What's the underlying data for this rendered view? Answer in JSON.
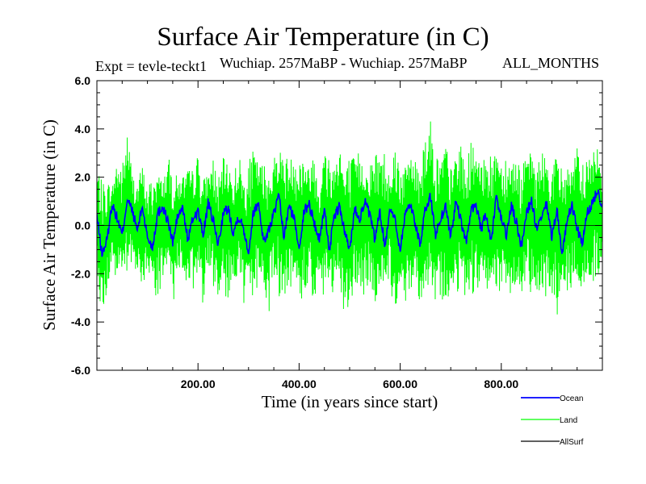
{
  "header": {
    "title": "Surface Air Temperature (in C)",
    "expt": "Expt = tevle-teckt1",
    "period": "Wuchiap. 257MaBP - Wuchiap. 257MaBP",
    "months": "ALL_MONTHS"
  },
  "chart_data": {
    "type": "line",
    "title": "Surface Air Temperature (in C)",
    "xlabel": "Time (in years since start)",
    "ylabel": "Surface Air Temperature (in C)",
    "xlim": [
      0,
      1000
    ],
    "ylim": [
      -6.0,
      6.0
    ],
    "x_ticks": [
      200,
      400,
      600,
      800
    ],
    "x_tick_labels": [
      "200.00",
      "400.00",
      "600.00",
      "800.00"
    ],
    "y_ticks": [
      6,
      4,
      2,
      0,
      -2,
      -4,
      -6
    ],
    "y_tick_labels": [
      "6.0",
      "4.0",
      "2.0",
      "0.0",
      "-2.0",
      "-4.0",
      "-6.0"
    ],
    "legend_position": "bottom-right, outside plot",
    "series": [
      {
        "name": "Land",
        "color": "#00ff00",
        "x": [
          0,
          10,
          20,
          30,
          40,
          50,
          60,
          70,
          80,
          90,
          100,
          110,
          120,
          130,
          140,
          150,
          160,
          170,
          180,
          190,
          200,
          210,
          220,
          230,
          240,
          250,
          260,
          270,
          280,
          290,
          300,
          310,
          320,
          330,
          340,
          350,
          360,
          370,
          380,
          390,
          400,
          410,
          420,
          430,
          440,
          450,
          460,
          470,
          480,
          490,
          500,
          510,
          520,
          530,
          540,
          550,
          560,
          570,
          580,
          590,
          600,
          610,
          620,
          630,
          640,
          650,
          660,
          670,
          680,
          690,
          700,
          710,
          720,
          730,
          740,
          750,
          760,
          770,
          780,
          790,
          800,
          810,
          820,
          830,
          840,
          850,
          860,
          870,
          880,
          890,
          900,
          910,
          920,
          930,
          940,
          950,
          960,
          970,
          980,
          990,
          1000
        ],
        "upper": [
          2.6,
          1.8,
          2.0,
          1.5,
          3.0,
          2.5,
          4.1,
          2.2,
          1.9,
          2.5,
          1.5,
          2.3,
          2.2,
          1.8,
          2.8,
          2.6,
          1.9,
          2.1,
          2.4,
          2.3,
          3.0,
          2.0,
          2.1,
          2.9,
          1.9,
          2.8,
          2.5,
          2.2,
          3.1,
          2.0,
          2.6,
          3.2,
          2.5,
          2.7,
          2.4,
          2.9,
          3.1,
          3.4,
          2.5,
          3.3,
          3.2,
          2.9,
          2.3,
          3.4,
          2.1,
          3.1,
          3.3,
          2.6,
          3.7,
          2.2,
          3.0,
          2.8,
          3.2,
          2.1,
          2.5,
          3.4,
          2.9,
          3.3,
          2.2,
          3.5,
          3.1,
          2.4,
          3.2,
          2.7,
          3.3,
          3.9,
          4.4,
          3.1,
          2.8,
          3.5,
          2.4,
          3.0,
          3.3,
          2.7,
          3.5,
          3.1,
          2.4,
          3.8,
          2.7,
          3.4,
          2.8,
          3.2,
          2.6,
          3.0,
          2.5,
          2.8,
          3.1,
          2.4,
          3.2,
          2.7,
          2.5,
          3.0,
          2.4,
          2.8,
          2.2,
          3.3,
          2.6,
          3.0,
          2.9,
          3.4,
          2.0
        ],
        "lower": [
          -1.6,
          -4.0,
          -2.8,
          -1.9,
          -2.6,
          -1.8,
          -2.4,
          -2.0,
          -1.7,
          -2.7,
          -2.1,
          -1.9,
          -3.5,
          -2.6,
          -2.2,
          -3.4,
          -1.9,
          -2.8,
          -2.0,
          -3.0,
          -2.2,
          -3.3,
          -1.9,
          -2.6,
          -2.9,
          -2.1,
          -3.8,
          -2.4,
          -2.0,
          -3.6,
          -2.5,
          -3.2,
          -2.3,
          -2.6,
          -3.8,
          -2.0,
          -3.1,
          -2.7,
          -3.3,
          -2.2,
          -2.9,
          -3.4,
          -2.1,
          -3.6,
          -2.4,
          -3.1,
          -2.2,
          -3.7,
          -2.8,
          -3.9,
          -3.5,
          -2.6,
          -2.9,
          -3.2,
          -2.4,
          -3.3,
          -2.6,
          -2.3,
          -2.8,
          -3.6,
          -2.2,
          -3.4,
          -2.7,
          -2.1,
          -3.4,
          -2.5,
          -3.0,
          -4.2,
          -2.8,
          -3.6,
          -2.6,
          -3.0,
          -2.3,
          -3.2,
          -2.5,
          -3.5,
          -2.4,
          -3.1,
          -2.2,
          -3.4,
          -2.5,
          -2.8,
          -3.3,
          -2.2,
          -3.0,
          -2.6,
          -2.8,
          -3.2,
          -2.4,
          -3.2,
          -2.8,
          -3.9,
          -2.4,
          -3.0,
          -2.6,
          -2.1,
          -2.9,
          -2.2,
          -2.7,
          -2.3,
          -1.5
        ]
      },
      {
        "name": "Ocean",
        "color": "#0000ff",
        "x": [
          0,
          10,
          20,
          30,
          40,
          50,
          60,
          70,
          80,
          90,
          100,
          110,
          120,
          130,
          140,
          150,
          160,
          170,
          180,
          190,
          200,
          210,
          220,
          230,
          240,
          250,
          260,
          270,
          280,
          290,
          300,
          310,
          320,
          330,
          340,
          350,
          360,
          370,
          380,
          390,
          400,
          410,
          420,
          430,
          440,
          450,
          460,
          470,
          480,
          490,
          500,
          510,
          520,
          530,
          540,
          550,
          560,
          570,
          580,
          590,
          600,
          610,
          620,
          630,
          640,
          650,
          660,
          670,
          680,
          690,
          700,
          710,
          720,
          730,
          740,
          750,
          760,
          770,
          780,
          790,
          800,
          810,
          820,
          830,
          840,
          850,
          860,
          870,
          880,
          890,
          900,
          910,
          920,
          930,
          940,
          950,
          960,
          970,
          980,
          990,
          1000
        ],
        "y": [
          0.4,
          -1.2,
          -0.6,
          0.9,
          0.3,
          -0.4,
          1.1,
          0.6,
          -0.2,
          0.8,
          -0.5,
          -0.9,
          0.5,
          0.8,
          0.2,
          -0.7,
          0.4,
          0.7,
          -0.6,
          0.3,
          0.6,
          -0.4,
          0.9,
          0.2,
          -0.8,
          0.5,
          0.7,
          -0.3,
          0.4,
          -0.1,
          -1.1,
          0.6,
          0.9,
          -0.7,
          -0.2,
          0.5,
          1.2,
          -0.5,
          0.8,
          0.3,
          -0.9,
          0.6,
          0.9,
          0.1,
          -0.6,
          0.7,
          -1.0,
          0.4,
          0.8,
          -0.3,
          -1.0,
          0.7,
          0.3,
          1.0,
          0.4,
          -0.6,
          0.6,
          -0.9,
          0.8,
          0.2,
          -1.0,
          0.5,
          0.9,
          0.1,
          -0.8,
          0.7,
          1.2,
          -0.4,
          0.3,
          0.8,
          -0.5,
          1.0,
          0.2,
          -0.7,
          0.6,
          0.9,
          -0.2,
          0.5,
          -0.8,
          1.2,
          0.3,
          -0.4,
          0.8,
          0.1,
          -0.9,
          0.6,
          1.0,
          -0.2,
          0.3,
          0.9,
          -0.5,
          0.7,
          -1.2,
          0.2,
          0.8,
          -0.1,
          -0.8,
          0.5,
          0.9,
          1.5,
          0.8
        ]
      },
      {
        "name": "AllSurf",
        "color": "#000000",
        "x": [],
        "y": []
      }
    ]
  }
}
